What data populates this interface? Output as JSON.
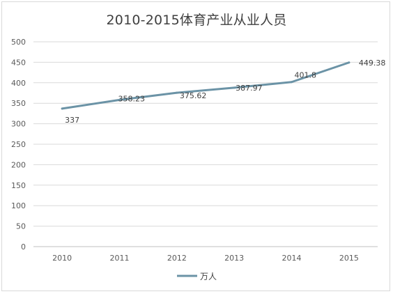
{
  "chart_data": {
    "type": "line",
    "title": "2010-2015体育产业从业人员",
    "categories": [
      "2010",
      "2011",
      "2012",
      "2013",
      "2014",
      "2015"
    ],
    "series": [
      {
        "name": "万人",
        "values": [
          337,
          358.23,
          375.62,
          387.97,
          401.8,
          449.38
        ],
        "data_labels": [
          "337",
          "358.23",
          "375.62",
          "387.97",
          "401.8",
          "449.38"
        ],
        "color": "#6b93a6"
      }
    ],
    "yticks": [
      "0",
      "50",
      "100",
      "150",
      "200",
      "250",
      "300",
      "350",
      "400",
      "450",
      "500"
    ],
    "ylim": [
      0,
      500
    ],
    "grid": true,
    "legend_position": "bottom"
  }
}
